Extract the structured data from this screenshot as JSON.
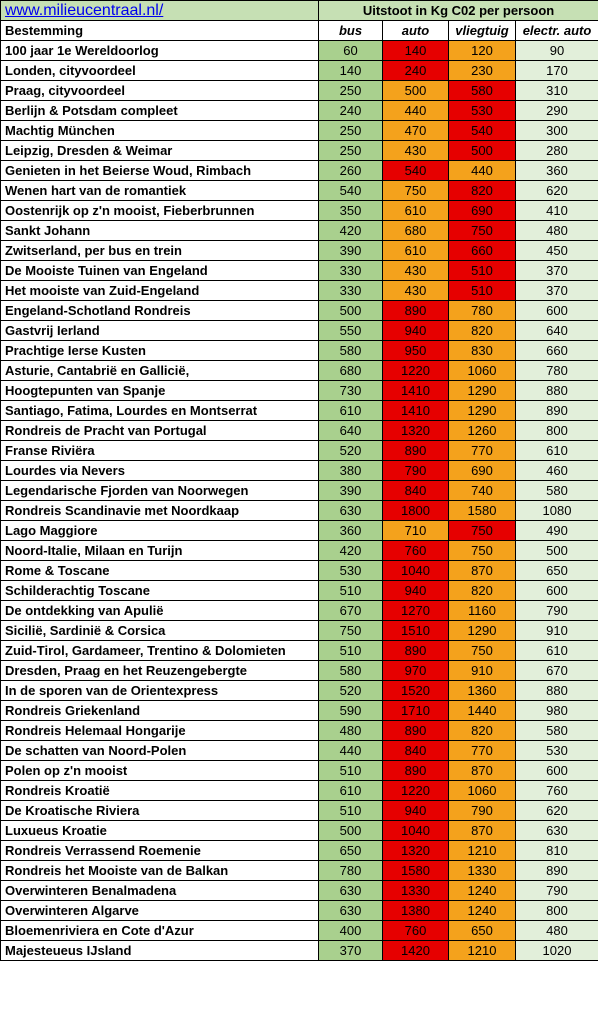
{
  "header": {
    "link": "www.milieucentraal.nl/",
    "title": "Uitstoot in Kg C02 per persoon"
  },
  "columns": [
    "Bestemming",
    "bus",
    "auto",
    "vliegtuig",
    "electr. auto"
  ],
  "rows": [
    [
      "100 jaar 1e Wereldoorlog",
      60,
      140,
      120,
      90
    ],
    [
      "Londen, cityvoordeel",
      140,
      240,
      230,
      170
    ],
    [
      "Praag, cityvoordeel",
      250,
      500,
      580,
      310
    ],
    [
      "Berlijn & Potsdam compleet",
      240,
      440,
      530,
      290
    ],
    [
      "Machtig München",
      250,
      470,
      540,
      300
    ],
    [
      "Leipzig, Dresden & Weimar",
      250,
      430,
      500,
      280
    ],
    [
      "Genieten in het Beierse Woud, Rimbach",
      260,
      540,
      440,
      360
    ],
    [
      "Wenen hart van de romantiek",
      540,
      750,
      820,
      620
    ],
    [
      "Oostenrijk op z'n mooist, Fieberbrunnen",
      350,
      610,
      690,
      410
    ],
    [
      "Sankt Johann",
      420,
      680,
      750,
      480
    ],
    [
      "Zwitserland, per bus en trein",
      390,
      610,
      660,
      450
    ],
    [
      "De Mooiste Tuinen van Engeland",
      330,
      430,
      510,
      370
    ],
    [
      "Het mooiste van Zuid-Engeland",
      330,
      430,
      510,
      370
    ],
    [
      "Engeland-Schotland Rondreis",
      500,
      890,
      780,
      600
    ],
    [
      "Gastvrij Ierland",
      550,
      940,
      820,
      640
    ],
    [
      "Prachtige Ierse Kusten",
      580,
      950,
      830,
      660
    ],
    [
      "Asturie, Cantabrië en Gallicië,",
      680,
      1220,
      1060,
      780
    ],
    [
      "Hoogtepunten van Spanje",
      730,
      1410,
      1290,
      880
    ],
    [
      "Santiago, Fatima, Lourdes en Montserrat",
      610,
      1410,
      1290,
      890
    ],
    [
      "Rondreis de Pracht van Portugal",
      640,
      1320,
      1260,
      800
    ],
    [
      "Franse Riviëra",
      520,
      890,
      770,
      610
    ],
    [
      "Lourdes via Nevers",
      380,
      790,
      690,
      460
    ],
    [
      "Legendarische Fjorden van Noorwegen",
      390,
      840,
      740,
      580
    ],
    [
      "Rondreis Scandinavie met Noordkaap",
      630,
      1800,
      1580,
      1080
    ],
    [
      "Lago Maggiore",
      360,
      710,
      750,
      490
    ],
    [
      "Noord-Italie, Milaan en Turijn",
      420,
      760,
      750,
      500
    ],
    [
      "Rome & Toscane",
      530,
      1040,
      870,
      650
    ],
    [
      "Schilderachtig Toscane",
      510,
      940,
      820,
      600
    ],
    [
      "De ontdekking van Apulië",
      670,
      1270,
      1160,
      790
    ],
    [
      "Sicilië, Sardinië & Corsica",
      750,
      1510,
      1290,
      910
    ],
    [
      "Zuid-Tirol, Gardameer, Trentino & Dolomieten",
      510,
      890,
      750,
      610
    ],
    [
      "Dresden, Praag en het Reuzengebergte",
      580,
      970,
      910,
      670
    ],
    [
      "In de sporen van de Orientexpress",
      520,
      1520,
      1360,
      880
    ],
    [
      "Rondreis Griekenland",
      590,
      1710,
      1440,
      980
    ],
    [
      "Rondreis Helemaal Hongarije",
      480,
      890,
      820,
      580
    ],
    [
      "De schatten van Noord-Polen",
      440,
      840,
      770,
      530
    ],
    [
      "Polen op z'n mooist",
      510,
      890,
      870,
      600
    ],
    [
      "Rondreis Kroatië",
      610,
      1220,
      1060,
      760
    ],
    [
      "De Kroatische Riviera",
      510,
      940,
      790,
      620
    ],
    [
      "Luxueus Kroatie",
      500,
      1040,
      870,
      630
    ],
    [
      "Rondreis Verrassend Roemenie",
      650,
      1320,
      1210,
      810
    ],
    [
      "Rondreis het Mooiste van de Balkan",
      780,
      1580,
      1330,
      890
    ],
    [
      "Overwinteren Benalmadena",
      630,
      1330,
      1240,
      790
    ],
    [
      "Overwinteren Algarve",
      630,
      1380,
      1240,
      800
    ],
    [
      "Bloemenriviera en Cote d'Azur",
      400,
      760,
      650,
      480
    ],
    [
      "Majesteueus IJsland",
      370,
      1420,
      1210,
      1020
    ]
  ]
}
